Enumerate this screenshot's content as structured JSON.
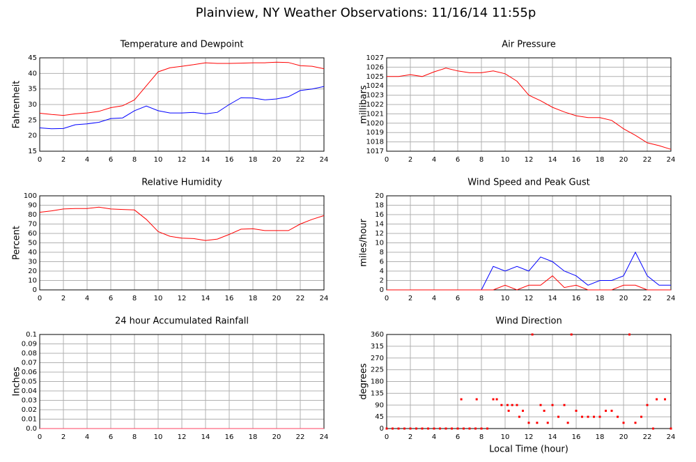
{
  "title": "Plainview, NY Weather Observations: 11/16/14 11:55p",
  "chart_data": [
    {
      "type": "line",
      "title": "Temperature and Dewpoint",
      "ylabel": "Fahrenheit",
      "x": [
        0,
        1,
        2,
        3,
        4,
        5,
        6,
        7,
        8,
        9,
        10,
        11,
        12,
        13,
        14,
        15,
        16,
        17,
        18,
        19,
        20,
        21,
        22,
        23,
        24
      ],
      "series": [
        {
          "color": "#ff0000",
          "values": [
            27.2,
            26.8,
            26.5,
            27,
            27.3,
            27.8,
            29,
            29.6,
            31.5,
            36,
            40.5,
            41.8,
            42.3,
            42.8,
            43.4,
            43.2,
            43.2,
            43.3,
            43.4,
            43.4,
            43.6,
            43.5,
            42.5,
            42.3,
            41.5
          ]
        },
        {
          "color": "#0000ff",
          "values": [
            22.5,
            22.2,
            22.3,
            23.5,
            23.8,
            24.3,
            25.5,
            25.7,
            28,
            29.5,
            28,
            27.3,
            27.3,
            27.5,
            27,
            27.5,
            30,
            32.2,
            32.1,
            31.5,
            31.8,
            32.5,
            34.5,
            35,
            35.8
          ]
        }
      ],
      "xlim": [
        0,
        24
      ],
      "xticks": [
        0,
        2,
        4,
        6,
        8,
        10,
        12,
        14,
        16,
        18,
        20,
        22,
        24
      ],
      "ylim": [
        15,
        45
      ],
      "yticks": [
        15,
        20,
        25,
        30,
        35,
        40,
        45
      ],
      "grid": true
    },
    {
      "type": "line",
      "title": "Air Pressure",
      "ylabel": "millibars",
      "x": [
        0,
        1,
        2,
        3,
        4,
        5,
        6,
        7,
        8,
        9,
        10,
        11,
        12,
        13,
        14,
        15,
        16,
        17,
        18,
        19,
        20,
        21,
        22,
        23,
        24
      ],
      "series": [
        {
          "color": "#ff0000",
          "values": [
            1025,
            1025,
            1025.2,
            1025,
            1025.5,
            1025.9,
            1025.6,
            1025.4,
            1025.4,
            1025.6,
            1025.3,
            1024.5,
            1023,
            1022.4,
            1021.7,
            1021.2,
            1020.8,
            1020.6,
            1020.6,
            1020.3,
            1019.4,
            1018.7,
            1017.9,
            1017.6,
            1017.2
          ]
        }
      ],
      "xlim": [
        0,
        24
      ],
      "xticks": [
        0,
        2,
        4,
        6,
        8,
        10,
        12,
        14,
        16,
        18,
        20,
        22,
        24
      ],
      "ylim": [
        1017,
        1027
      ],
      "yticks": [
        1017,
        1018,
        1019,
        1020,
        1021,
        1022,
        1023,
        1024,
        1025,
        1026,
        1027
      ],
      "grid": true
    },
    {
      "type": "line",
      "title": "Relative Humidity",
      "ylabel": "Percent",
      "x": [
        0,
        1,
        2,
        3,
        4,
        5,
        6,
        7,
        8,
        9,
        10,
        11,
        12,
        13,
        14,
        15,
        16,
        17,
        18,
        19,
        20,
        21,
        22,
        23,
        24
      ],
      "series": [
        {
          "color": "#ff0000",
          "values": [
            82.5,
            84,
            86,
            86.5,
            86.5,
            88,
            86,
            85.5,
            85,
            75,
            62,
            57,
            55,
            54.5,
            52.5,
            54,
            59,
            64.5,
            65,
            63,
            63,
            63,
            70,
            75,
            79
          ]
        }
      ],
      "xlim": [
        0,
        24
      ],
      "xticks": [
        0,
        2,
        4,
        6,
        8,
        10,
        12,
        14,
        16,
        18,
        20,
        22,
        24
      ],
      "ylim": [
        0,
        100
      ],
      "yticks": [
        0,
        10,
        20,
        30,
        40,
        50,
        60,
        70,
        80,
        90,
        100
      ],
      "grid": true
    },
    {
      "type": "line",
      "title": "Wind Speed and Peak Gust",
      "ylabel": "miles/hour",
      "x": [
        0,
        1,
        2,
        3,
        4,
        5,
        6,
        7,
        8,
        9,
        10,
        11,
        12,
        13,
        14,
        15,
        16,
        17,
        18,
        19,
        20,
        21,
        22,
        23,
        24
      ],
      "series": [
        {
          "color": "#0000ff",
          "values": [
            0,
            0,
            0,
            0,
            0,
            0,
            0,
            0,
            0,
            5,
            4,
            5,
            4,
            7,
            6,
            4,
            3,
            1,
            2,
            2,
            3,
            8,
            3,
            1,
            1
          ]
        },
        {
          "color": "#ff0000",
          "values": [
            0,
            0,
            0,
            0,
            0,
            0,
            0,
            0,
            0,
            0,
            1,
            0,
            1,
            1,
            3,
            0.5,
            1,
            0,
            0,
            0,
            1,
            1,
            0,
            0,
            0
          ]
        }
      ],
      "xlim": [
        0,
        24
      ],
      "xticks": [
        0,
        2,
        4,
        6,
        8,
        10,
        12,
        14,
        16,
        18,
        20,
        22,
        24
      ],
      "ylim": [
        0,
        20
      ],
      "yticks": [
        0,
        2,
        4,
        6,
        8,
        10,
        12,
        14,
        16,
        18,
        20
      ],
      "grid": true
    },
    {
      "type": "line",
      "title": "24 hour Accumulated Rainfall",
      "ylabel": "Inches",
      "x": [
        0,
        1,
        2,
        3,
        4,
        5,
        6,
        7,
        8,
        9,
        10,
        11,
        12,
        13,
        14,
        15,
        16,
        17,
        18,
        19,
        20,
        21,
        22,
        23,
        24
      ],
      "series": [
        {
          "color": "#ff4060",
          "values": [
            0,
            0,
            0,
            0,
            0,
            0,
            0,
            0,
            0,
            0,
            0,
            0,
            0,
            0,
            0,
            0,
            0,
            0,
            0,
            0,
            0,
            0,
            0,
            0,
            0
          ]
        }
      ],
      "xlim": [
        0,
        24
      ],
      "xticks": [
        0,
        2,
        4,
        6,
        8,
        10,
        12,
        14,
        16,
        18,
        20,
        22,
        24
      ],
      "ylim": [
        0,
        0.1
      ],
      "yticks": [
        {
          "value": 0,
          "label": "0.0"
        },
        0.01,
        0.02,
        0.03,
        0.04,
        0.05,
        0.06,
        0.07,
        0.08,
        0.09,
        0.1
      ],
      "grid": true
    },
    {
      "type": "scatter",
      "title": "Wind Direction",
      "ylabel": "degrees",
      "xlabel": "Local Time (hour)",
      "x": [
        0,
        0.5,
        1,
        1.5,
        2,
        2.5,
        3,
        3.5,
        4,
        4.5,
        5,
        5.5,
        6,
        6.5,
        7,
        7.5,
        8,
        8.5,
        6.3,
        7.6,
        9,
        9.3,
        9.7,
        10.2,
        10.6,
        11,
        10.3,
        11.2,
        11.5,
        12,
        12.3,
        12.7,
        13,
        13.3,
        13.6,
        14,
        14.5,
        15,
        15.6,
        15.3,
        16,
        16.5,
        17,
        17.5,
        18,
        18.5,
        19,
        19.5,
        20,
        20.5,
        21,
        21.5,
        22,
        22.5,
        22.8,
        23.5,
        24
      ],
      "values": [
        0,
        0,
        0,
        0,
        0,
        0,
        0,
        0,
        0,
        0,
        0,
        0,
        0,
        0,
        0,
        0,
        0,
        0,
        112,
        112,
        112,
        112,
        90,
        90,
        90,
        90,
        68,
        45,
        68,
        22,
        360,
        22,
        90,
        68,
        22,
        90,
        45,
        90,
        360,
        22,
        68,
        45,
        45,
        45,
        45,
        68,
        68,
        45,
        22,
        360,
        22,
        45,
        90,
        0,
        112,
        112,
        0
      ],
      "color": "#ff0000",
      "xlim": [
        0,
        24
      ],
      "xticks": [
        0,
        2,
        4,
        6,
        8,
        10,
        12,
        14,
        16,
        18,
        20,
        22,
        24
      ],
      "ylim": [
        0,
        360
      ],
      "yticks": [
        0,
        45,
        90,
        135,
        180,
        225,
        270,
        315,
        360
      ],
      "grid": true
    }
  ]
}
